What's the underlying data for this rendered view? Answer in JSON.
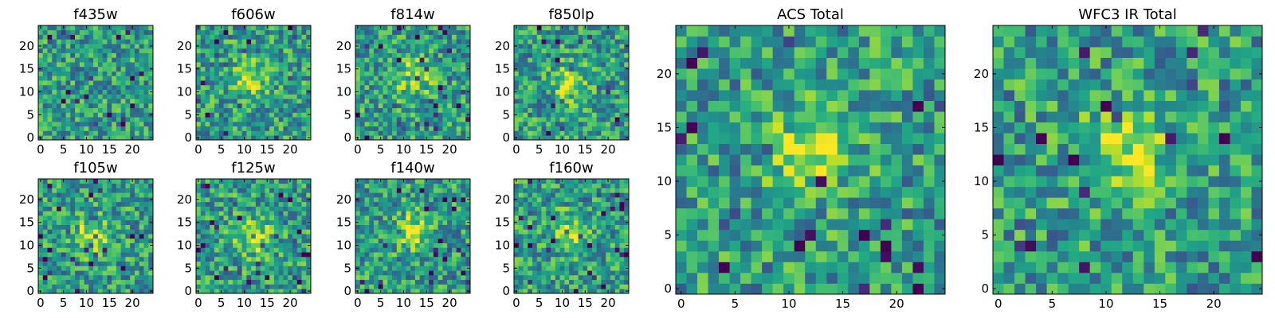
{
  "chart_data": [
    {
      "type": "heatmap",
      "title": "f435w",
      "colormap": "viridis",
      "xticks": [
        0,
        5,
        10,
        15,
        20
      ],
      "yticks": [
        0,
        5,
        10,
        15,
        20
      ],
      "xlim": [
        -0.5,
        24.5
      ],
      "ylim": [
        -0.5,
        24.5
      ],
      "grid_size": 25,
      "peak": null,
      "noise_seed": 1
    },
    {
      "type": "heatmap",
      "title": "f606w",
      "colormap": "viridis",
      "xticks": [
        0,
        5,
        10,
        15,
        20
      ],
      "yticks": [
        0,
        5,
        10,
        15,
        20
      ],
      "xlim": [
        -0.5,
        24.5
      ],
      "ylim": [
        -0.5,
        24.5
      ],
      "grid_size": 25,
      "peak": [
        11,
        13
      ],
      "noise_seed": 2
    },
    {
      "type": "heatmap",
      "title": "f814w",
      "colormap": "viridis",
      "xticks": [
        0,
        5,
        10,
        15,
        20
      ],
      "yticks": [
        0,
        5,
        10,
        15,
        20
      ],
      "xlim": [
        -0.5,
        24.5
      ],
      "ylim": [
        -0.5,
        24.5
      ],
      "grid_size": 25,
      "peak": [
        12,
        13
      ],
      "noise_seed": 3
    },
    {
      "type": "heatmap",
      "title": "f850lp",
      "colormap": "viridis",
      "xticks": [
        0,
        5,
        10,
        15,
        20
      ],
      "yticks": [
        0,
        5,
        10,
        15,
        20
      ],
      "xlim": [
        -0.5,
        24.5
      ],
      "ylim": [
        -0.5,
        24.5
      ],
      "grid_size": 25,
      "peak": [
        12,
        12
      ],
      "noise_seed": 4
    },
    {
      "type": "heatmap",
      "title": "f105w",
      "colormap": "viridis",
      "xticks": [
        0,
        5,
        10,
        15,
        20
      ],
      "yticks": [
        0,
        5,
        10,
        15,
        20
      ],
      "xlim": [
        -0.5,
        24.5
      ],
      "ylim": [
        -0.5,
        24.5
      ],
      "grid_size": 25,
      "peak": [
        11,
        12
      ],
      "noise_seed": 5
    },
    {
      "type": "heatmap",
      "title": "f125w",
      "colormap": "viridis",
      "xticks": [
        0,
        5,
        10,
        15,
        20
      ],
      "yticks": [
        0,
        5,
        10,
        15,
        20
      ],
      "xlim": [
        -0.5,
        24.5
      ],
      "ylim": [
        -0.5,
        24.5
      ],
      "grid_size": 25,
      "peak": [
        12,
        12
      ],
      "noise_seed": 6
    },
    {
      "type": "heatmap",
      "title": "f140w",
      "colormap": "viridis",
      "xticks": [
        0,
        5,
        10,
        15,
        20
      ],
      "yticks": [
        0,
        5,
        10,
        15,
        20
      ],
      "xlim": [
        -0.5,
        24.5
      ],
      "ylim": [
        -0.5,
        24.5
      ],
      "grid_size": 25,
      "peak": [
        12,
        13
      ],
      "noise_seed": 7
    },
    {
      "type": "heatmap",
      "title": "f160w",
      "colormap": "viridis",
      "xticks": [
        0,
        5,
        10,
        15,
        20
      ],
      "yticks": [
        0,
        5,
        10,
        15,
        20
      ],
      "xlim": [
        -0.5,
        24.5
      ],
      "ylim": [
        -0.5,
        24.5
      ],
      "grid_size": 25,
      "peak": [
        12,
        13
      ],
      "noise_seed": 8
    },
    {
      "type": "heatmap",
      "title": "ACS Total",
      "colormap": "viridis",
      "xticks": [
        0,
        5,
        10,
        15,
        20
      ],
      "yticks": [
        0,
        5,
        10,
        15,
        20
      ],
      "xlim": [
        -0.5,
        24.5
      ],
      "ylim": [
        -0.5,
        24.5
      ],
      "grid_size": 25,
      "peak": [
        12,
        13
      ],
      "noise_seed": 9
    },
    {
      "type": "heatmap",
      "title": "WFC3 IR Total",
      "colormap": "viridis",
      "xticks": [
        0,
        5,
        10,
        15,
        20
      ],
      "yticks": [
        0,
        5,
        10,
        15,
        20
      ],
      "xlim": [
        -0.5,
        24.5
      ],
      "ylim": [
        -0.5,
        24.5
      ],
      "grid_size": 25,
      "peak": [
        12,
        13
      ],
      "noise_seed": 10
    }
  ]
}
